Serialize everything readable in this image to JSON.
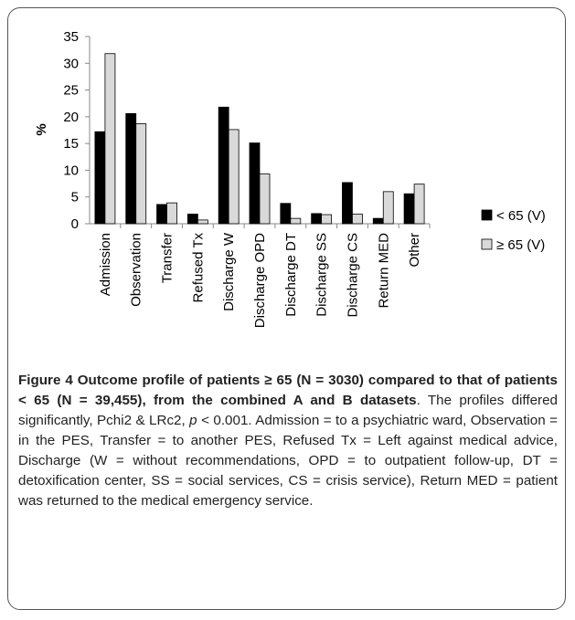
{
  "chart_data": {
    "type": "bar",
    "ylabel": "%",
    "categories": [
      "Admission",
      "Observation",
      "Transfer",
      "Refused Tx",
      "Discharge W",
      "Discharge OPD",
      "Discharge DT",
      "Discharge SS",
      "Discharge CS",
      "Return MED",
      "Other"
    ],
    "series": [
      {
        "name": "< 65 (V)",
        "color": "#000000",
        "values": [
          17.2,
          20.6,
          3.6,
          1.8,
          21.8,
          15.1,
          3.8,
          1.9,
          7.7,
          1.0,
          5.6
        ]
      },
      {
        "name": "≥ 65 (V)",
        "color": "#d9d9d9",
        "values": [
          31.8,
          18.7,
          3.9,
          0.7,
          17.6,
          9.3,
          1.0,
          1.7,
          1.8,
          6.0,
          7.4
        ]
      }
    ],
    "ylim": [
      0,
      35
    ],
    "yticks": [
      0,
      5,
      10,
      15,
      20,
      25,
      30,
      35
    ],
    "grid": false,
    "legend": "right"
  },
  "caption": {
    "bold": "Figure 4 Outcome profile of patients ≥ 65 (N = 3030) compared to that of patients < 65 (N = 39,455), from the combined A and B datasets",
    "text_before": ". The profiles differed significantly, Pchi2 & LRc2, ",
    "italic": "p",
    "text_after": " < 0.001. Admission = to a psychiatric ward, Observation = in the PES, Transfer = to another PES, Refused Tx = Left against medical advice, Discharge (W = without recommendations, OPD = to outpatient follow-up, DT = detoxification center, SS = social services, CS = crisis service), Return MED = patient was returned to the medical emergency service."
  }
}
